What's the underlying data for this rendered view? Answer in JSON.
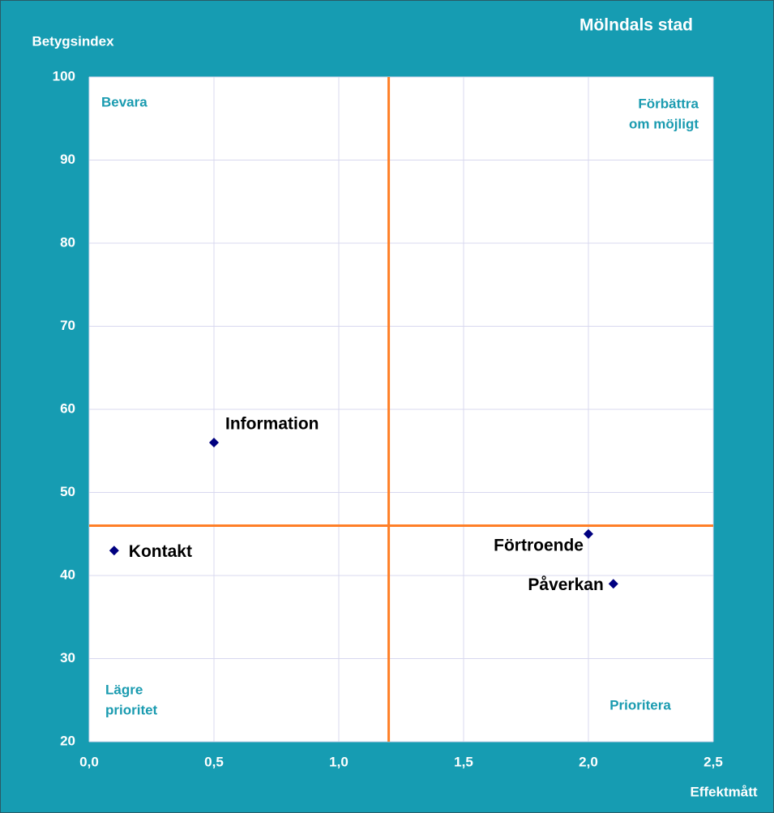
{
  "chart_data": {
    "type": "scatter",
    "title": "Mölndals stad",
    "ylabel": "Betygsindex",
    "xlabel": "Effektmått",
    "color": "#000080",
    "points": [
      {
        "label": "Information",
        "x": 0.5,
        "y": 56
      },
      {
        "label": "Kontakt",
        "x": 0.1,
        "y": 43
      },
      {
        "label": "Förtroende",
        "x": 2.0,
        "y": 45
      },
      {
        "label": "Påverkan",
        "x": 2.1,
        "y": 39
      }
    ],
    "reference_lines": {
      "x": 1.2,
      "y": 46,
      "color": "#ff7f27"
    },
    "quadrant_labels": [
      {
        "lines": [
          "Bevara"
        ]
      },
      {
        "lines": [
          "Förbättra",
          "om möjligt"
        ]
      },
      {
        "lines": [
          "Lägre",
          "prioritet"
        ]
      },
      {
        "lines": [
          "Prioritera"
        ]
      }
    ],
    "xlim": [
      0,
      2.5
    ],
    "xticks": [
      {
        "value": 0,
        "label": "0,0"
      },
      {
        "value": 0.5,
        "label": "0,5"
      },
      {
        "value": 1.0,
        "label": "1,0"
      },
      {
        "value": 1.5,
        "label": "1,5"
      },
      {
        "value": 2.0,
        "label": "2,0"
      },
      {
        "value": 2.5,
        "label": "2,5"
      }
    ],
    "ylim": [
      20,
      100
    ],
    "yticks": [
      20,
      30,
      40,
      50,
      60,
      70,
      80,
      90,
      100
    ],
    "grid": true
  }
}
